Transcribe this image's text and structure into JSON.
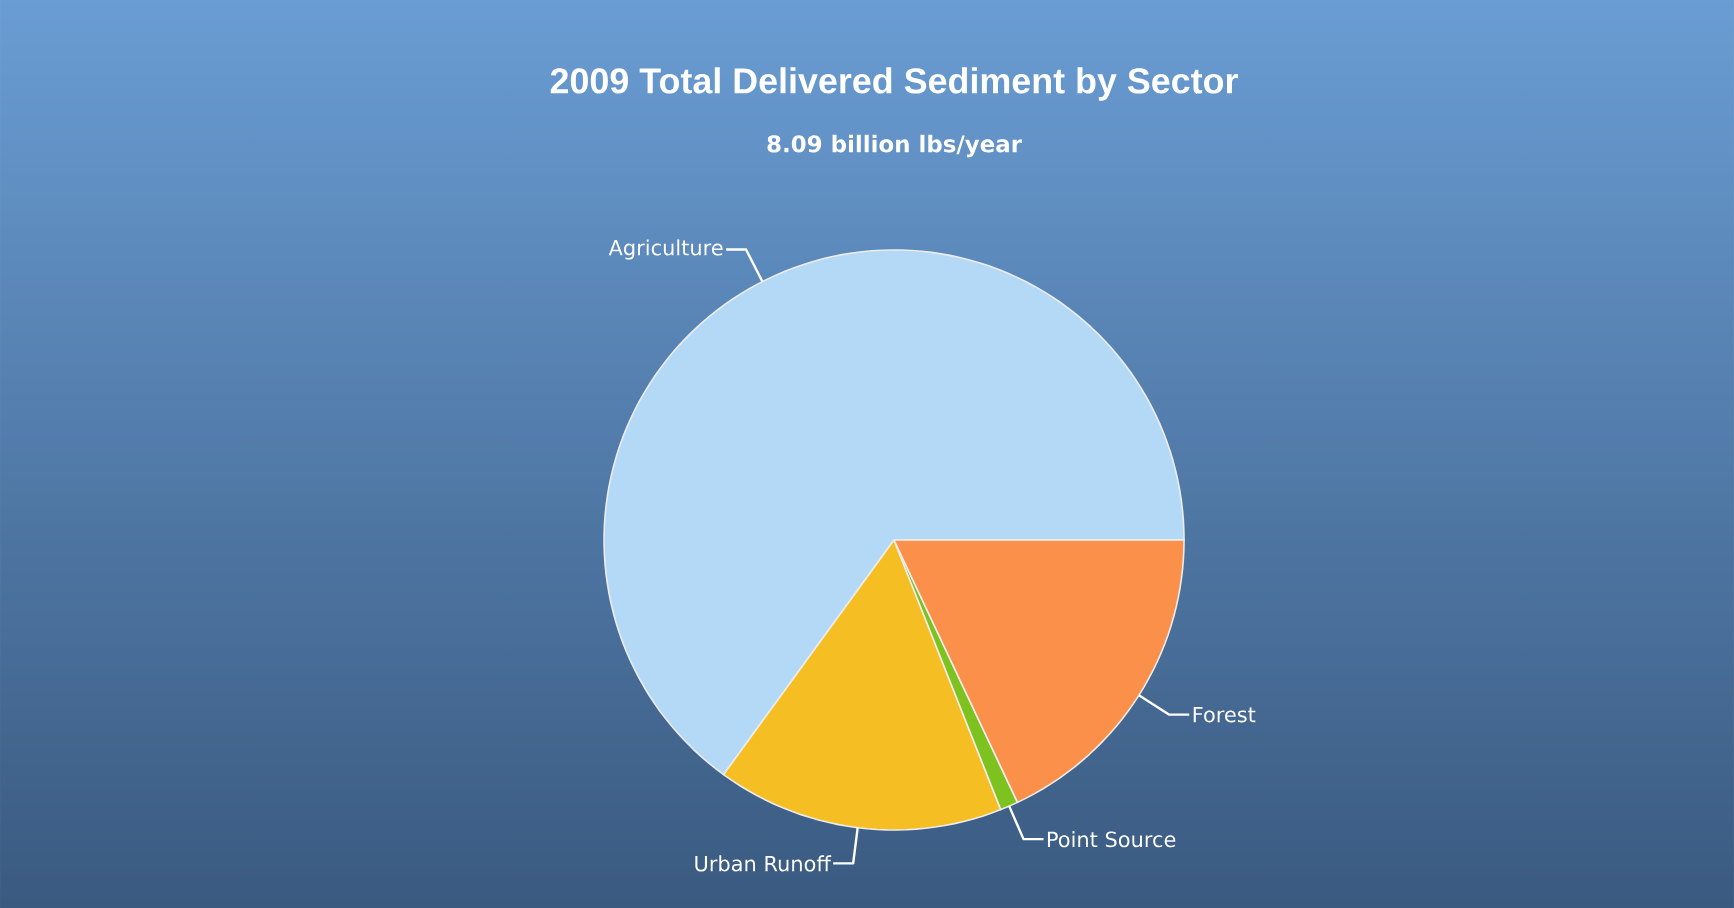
{
  "chart_data": {
    "type": "pie",
    "title": "2009 Total Delivered Sediment by Sector",
    "subtitle": "8.09 billion lbs/year",
    "categories": [
      "Agriculture",
      "Urban Runoff",
      "Point Source",
      "Forest"
    ],
    "values": [
      65,
      16,
      1,
      18
    ],
    "colors": [
      "#b3d9f7",
      "#f5bf23",
      "#7dc21e",
      "#fb904b"
    ]
  }
}
